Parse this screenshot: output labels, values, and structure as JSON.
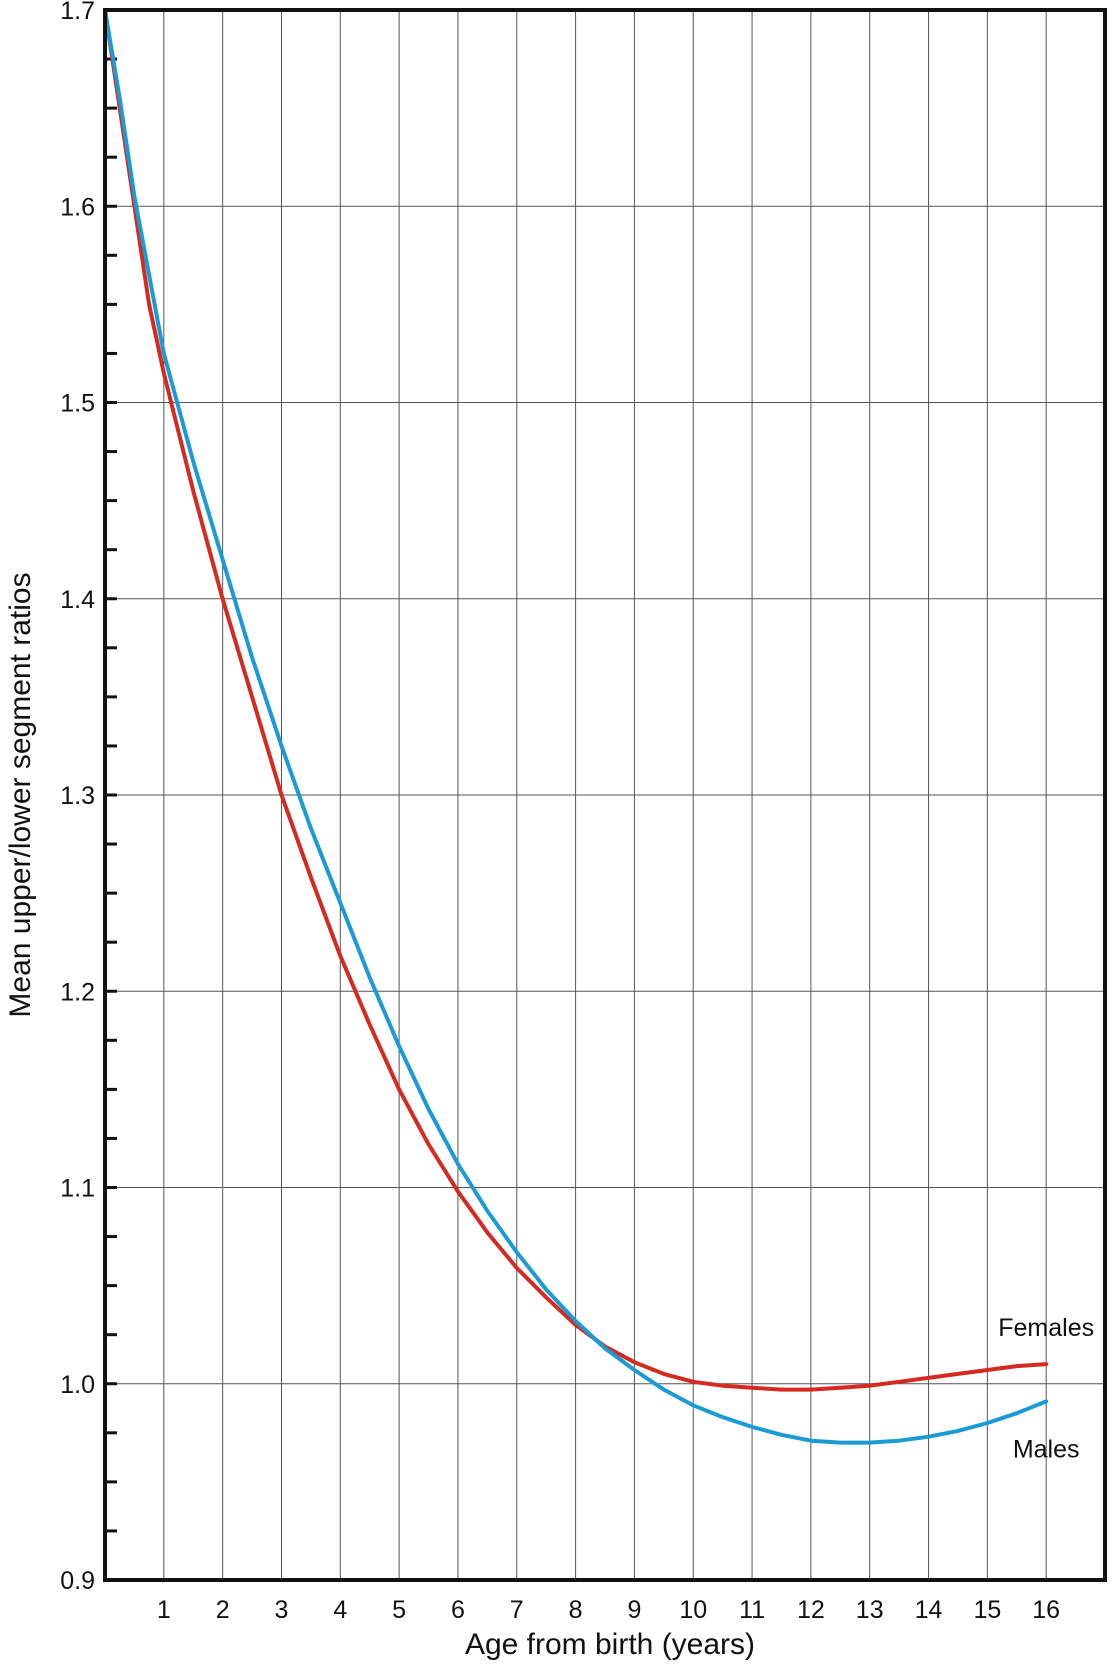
{
  "chart_data": {
    "type": "line",
    "title": "",
    "xlabel": "Age from birth (years)",
    "ylabel": "Mean upper/lower segment ratios",
    "xlim": [
      0,
      17
    ],
    "ylim": [
      0.9,
      1.7
    ],
    "x_ticks": [
      1,
      2,
      3,
      4,
      5,
      6,
      7,
      8,
      9,
      10,
      11,
      12,
      13,
      14,
      15,
      16
    ],
    "x_tick_labels": [
      "1",
      "2",
      "3",
      "4",
      "5",
      "6",
      "7",
      "8",
      "9",
      "10",
      "11",
      "12",
      "13",
      "14",
      "15",
      "16"
    ],
    "y_ticks": [
      0.9,
      1.0,
      1.1,
      1.2,
      1.3,
      1.4,
      1.5,
      1.6,
      1.7
    ],
    "y_tick_labels": [
      "0.9",
      "1.0",
      "1.1",
      "1.2",
      "1.3",
      "1.4",
      "1.5",
      "1.6",
      "1.7"
    ],
    "y_minor_step": 0.025,
    "grid": true,
    "legend": "direct labels at line ends",
    "series": [
      {
        "name": "Females",
        "color": "#d42a20",
        "x": [
          0,
          0.25,
          0.5,
          0.75,
          1,
          1.5,
          2,
          2.5,
          3,
          3.5,
          4,
          4.5,
          5,
          5.5,
          6,
          6.5,
          7,
          7.5,
          8,
          8.5,
          9,
          9.5,
          10,
          10.5,
          11,
          11.5,
          12,
          12.5,
          13,
          13.5,
          14,
          14.5,
          15,
          15.5,
          16
        ],
        "y": [
          1.7,
          1.65,
          1.6,
          1.55,
          1.515,
          1.455,
          1.4,
          1.35,
          1.3,
          1.258,
          1.218,
          1.183,
          1.15,
          1.122,
          1.098,
          1.077,
          1.059,
          1.044,
          1.03,
          1.019,
          1.011,
          1.005,
          1.001,
          0.999,
          0.998,
          0.997,
          0.997,
          0.998,
          0.999,
          1.001,
          1.003,
          1.005,
          1.007,
          1.009,
          1.01
        ]
      },
      {
        "name": "Males",
        "color": "#1a9ad6",
        "x": [
          0,
          0.25,
          0.5,
          0.75,
          1,
          1.5,
          2,
          2.5,
          3,
          3.5,
          4,
          4.5,
          5,
          5.5,
          6,
          6.5,
          7,
          7.5,
          8,
          8.5,
          9,
          9.5,
          10,
          10.5,
          11,
          11.5,
          12,
          12.5,
          13,
          13.5,
          14,
          14.5,
          15,
          15.5,
          16
        ],
        "y": [
          1.7,
          1.655,
          1.605,
          1.565,
          1.525,
          1.47,
          1.42,
          1.37,
          1.325,
          1.283,
          1.245,
          1.207,
          1.172,
          1.14,
          1.112,
          1.088,
          1.067,
          1.048,
          1.032,
          1.018,
          1.007,
          0.997,
          0.989,
          0.983,
          0.978,
          0.974,
          0.971,
          0.97,
          0.97,
          0.971,
          0.973,
          0.976,
          0.98,
          0.985,
          0.991
        ]
      }
    ]
  }
}
